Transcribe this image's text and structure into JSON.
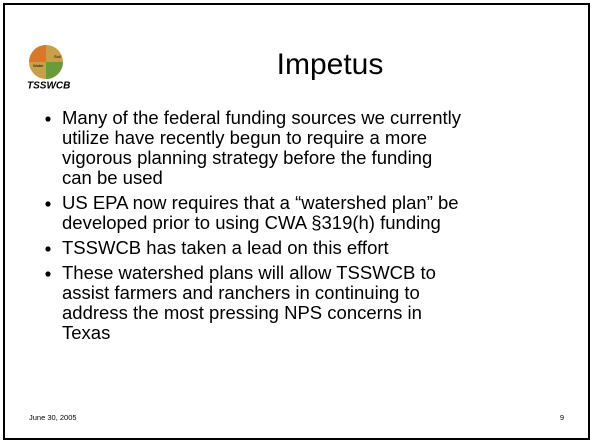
{
  "logo": {
    "small_top": "Soil",
    "small_bottom": "Water",
    "name": "TSSWCB"
  },
  "title": "Impetus",
  "bullets": [
    {
      "lines": [
        "Many of the federal funding sources we currently",
        "utilize have recently begun to require a more",
        "vigorous planning strategy before the funding",
        "can be used"
      ]
    },
    {
      "lines": [
        "US EPA now requires that a “watershed plan” be",
        "developed prior to using CWA §319(h) funding"
      ]
    },
    {
      "lines": [
        "TSSWCB has taken a lead on this effort"
      ]
    },
    {
      "lines": [
        "These watershed plans will allow TSSWCB to",
        "assist farmers and ranchers in continuing to",
        "address the most pressing NPS concerns in",
        "Texas"
      ]
    }
  ],
  "footer": {
    "date": "June 30, 2005",
    "page": "9"
  }
}
